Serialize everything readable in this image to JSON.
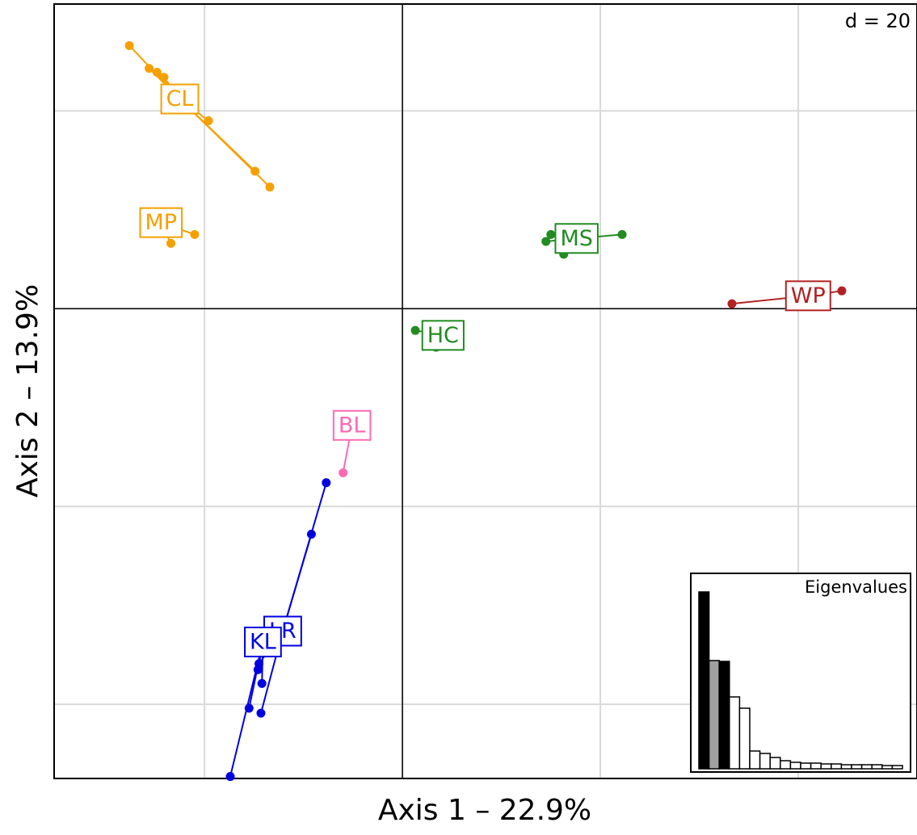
{
  "chart_data": [
    {
      "type": "scatter",
      "xlabel": "Axis 1 – 22.9%",
      "ylabel": "Axis 2 – 13.9%",
      "grid_label": "d = 20",
      "xlim": [
        -35.2,
        52.0
      ],
      "ylim": [
        -47.5,
        30.8
      ],
      "xticks": [
        -20,
        0,
        20,
        40
      ],
      "yticks": [
        -40,
        -20,
        0,
        20
      ],
      "grid": true,
      "groups": [
        {
          "name": "CL",
          "color": "#f5a000",
          "label_x": -22.5,
          "label_y": 21.2,
          "x": [
            -27.6,
            -25.6,
            -24.8,
            -24.1,
            -19.6,
            -14.9,
            -13.4
          ],
          "y": [
            26.6,
            24.3,
            23.9,
            23.4,
            19.0,
            13.9,
            12.3
          ]
        },
        {
          "name": "MP",
          "color": "#f5a000",
          "label_x": -24.4,
          "label_y": 8.7,
          "x": [
            -23.4,
            -21.0
          ],
          "y": [
            6.6,
            7.5
          ]
        },
        {
          "name": "MS",
          "color": "#228b22",
          "label_x": 17.6,
          "label_y": 7.1,
          "x": [
            14.5,
            16.3,
            22.2,
            15.0
          ],
          "y": [
            6.8,
            5.5,
            7.5,
            7.5
          ]
        },
        {
          "name": "WP",
          "color": "#b22222",
          "label_x": 41.0,
          "label_y": 1.3,
          "x": [
            33.3,
            44.4
          ],
          "y": [
            0.5,
            1.8
          ]
        },
        {
          "name": "HC",
          "color": "#228b22",
          "label_x": 4.1,
          "label_y": -2.7,
          "x": [
            1.3,
            3.4
          ],
          "y": [
            -2.2,
            -3.9
          ]
        },
        {
          "name": "BL",
          "color": "#ff69b4",
          "label_x": -5.1,
          "label_y": -11.8,
          "x": [
            -6.0
          ],
          "y": [
            -16.6
          ]
        },
        {
          "name": "LR",
          "color": "#0000e0",
          "label_x": -12.1,
          "label_y": -32.6,
          "x": [
            -7.7,
            -9.2,
            -14.5,
            -14.3
          ],
          "y": [
            -17.6,
            -22.8,
            -35.9,
            -40.9
          ]
        },
        {
          "name": "KL",
          "color": "#0000e0",
          "label_x": -14.1,
          "label_y": -33.7,
          "x": [
            -14.6,
            -14.2,
            -15.5,
            -17.4
          ],
          "y": [
            -36.5,
            -37.9,
            -40.4,
            -47.3
          ]
        }
      ]
    },
    {
      "type": "bar",
      "title": "Eigenvalues",
      "ylim": [
        0,
        230
      ],
      "values": [
        219,
        134,
        133,
        89,
        75,
        22,
        19,
        14,
        10,
        8,
        7,
        7,
        6,
        6,
        5,
        5,
        5,
        5,
        4,
        4
      ],
      "colors": [
        "#000000",
        "#a0a0a0",
        "#000000",
        "#ffffff",
        "#ffffff",
        "#ffffff",
        "#ffffff",
        "#ffffff",
        "#ffffff",
        "#ffffff",
        "#ffffff",
        "#ffffff",
        "#ffffff",
        "#ffffff",
        "#ffffff",
        "#ffffff",
        "#ffffff",
        "#ffffff",
        "#ffffff",
        "#ffffff"
      ]
    }
  ]
}
